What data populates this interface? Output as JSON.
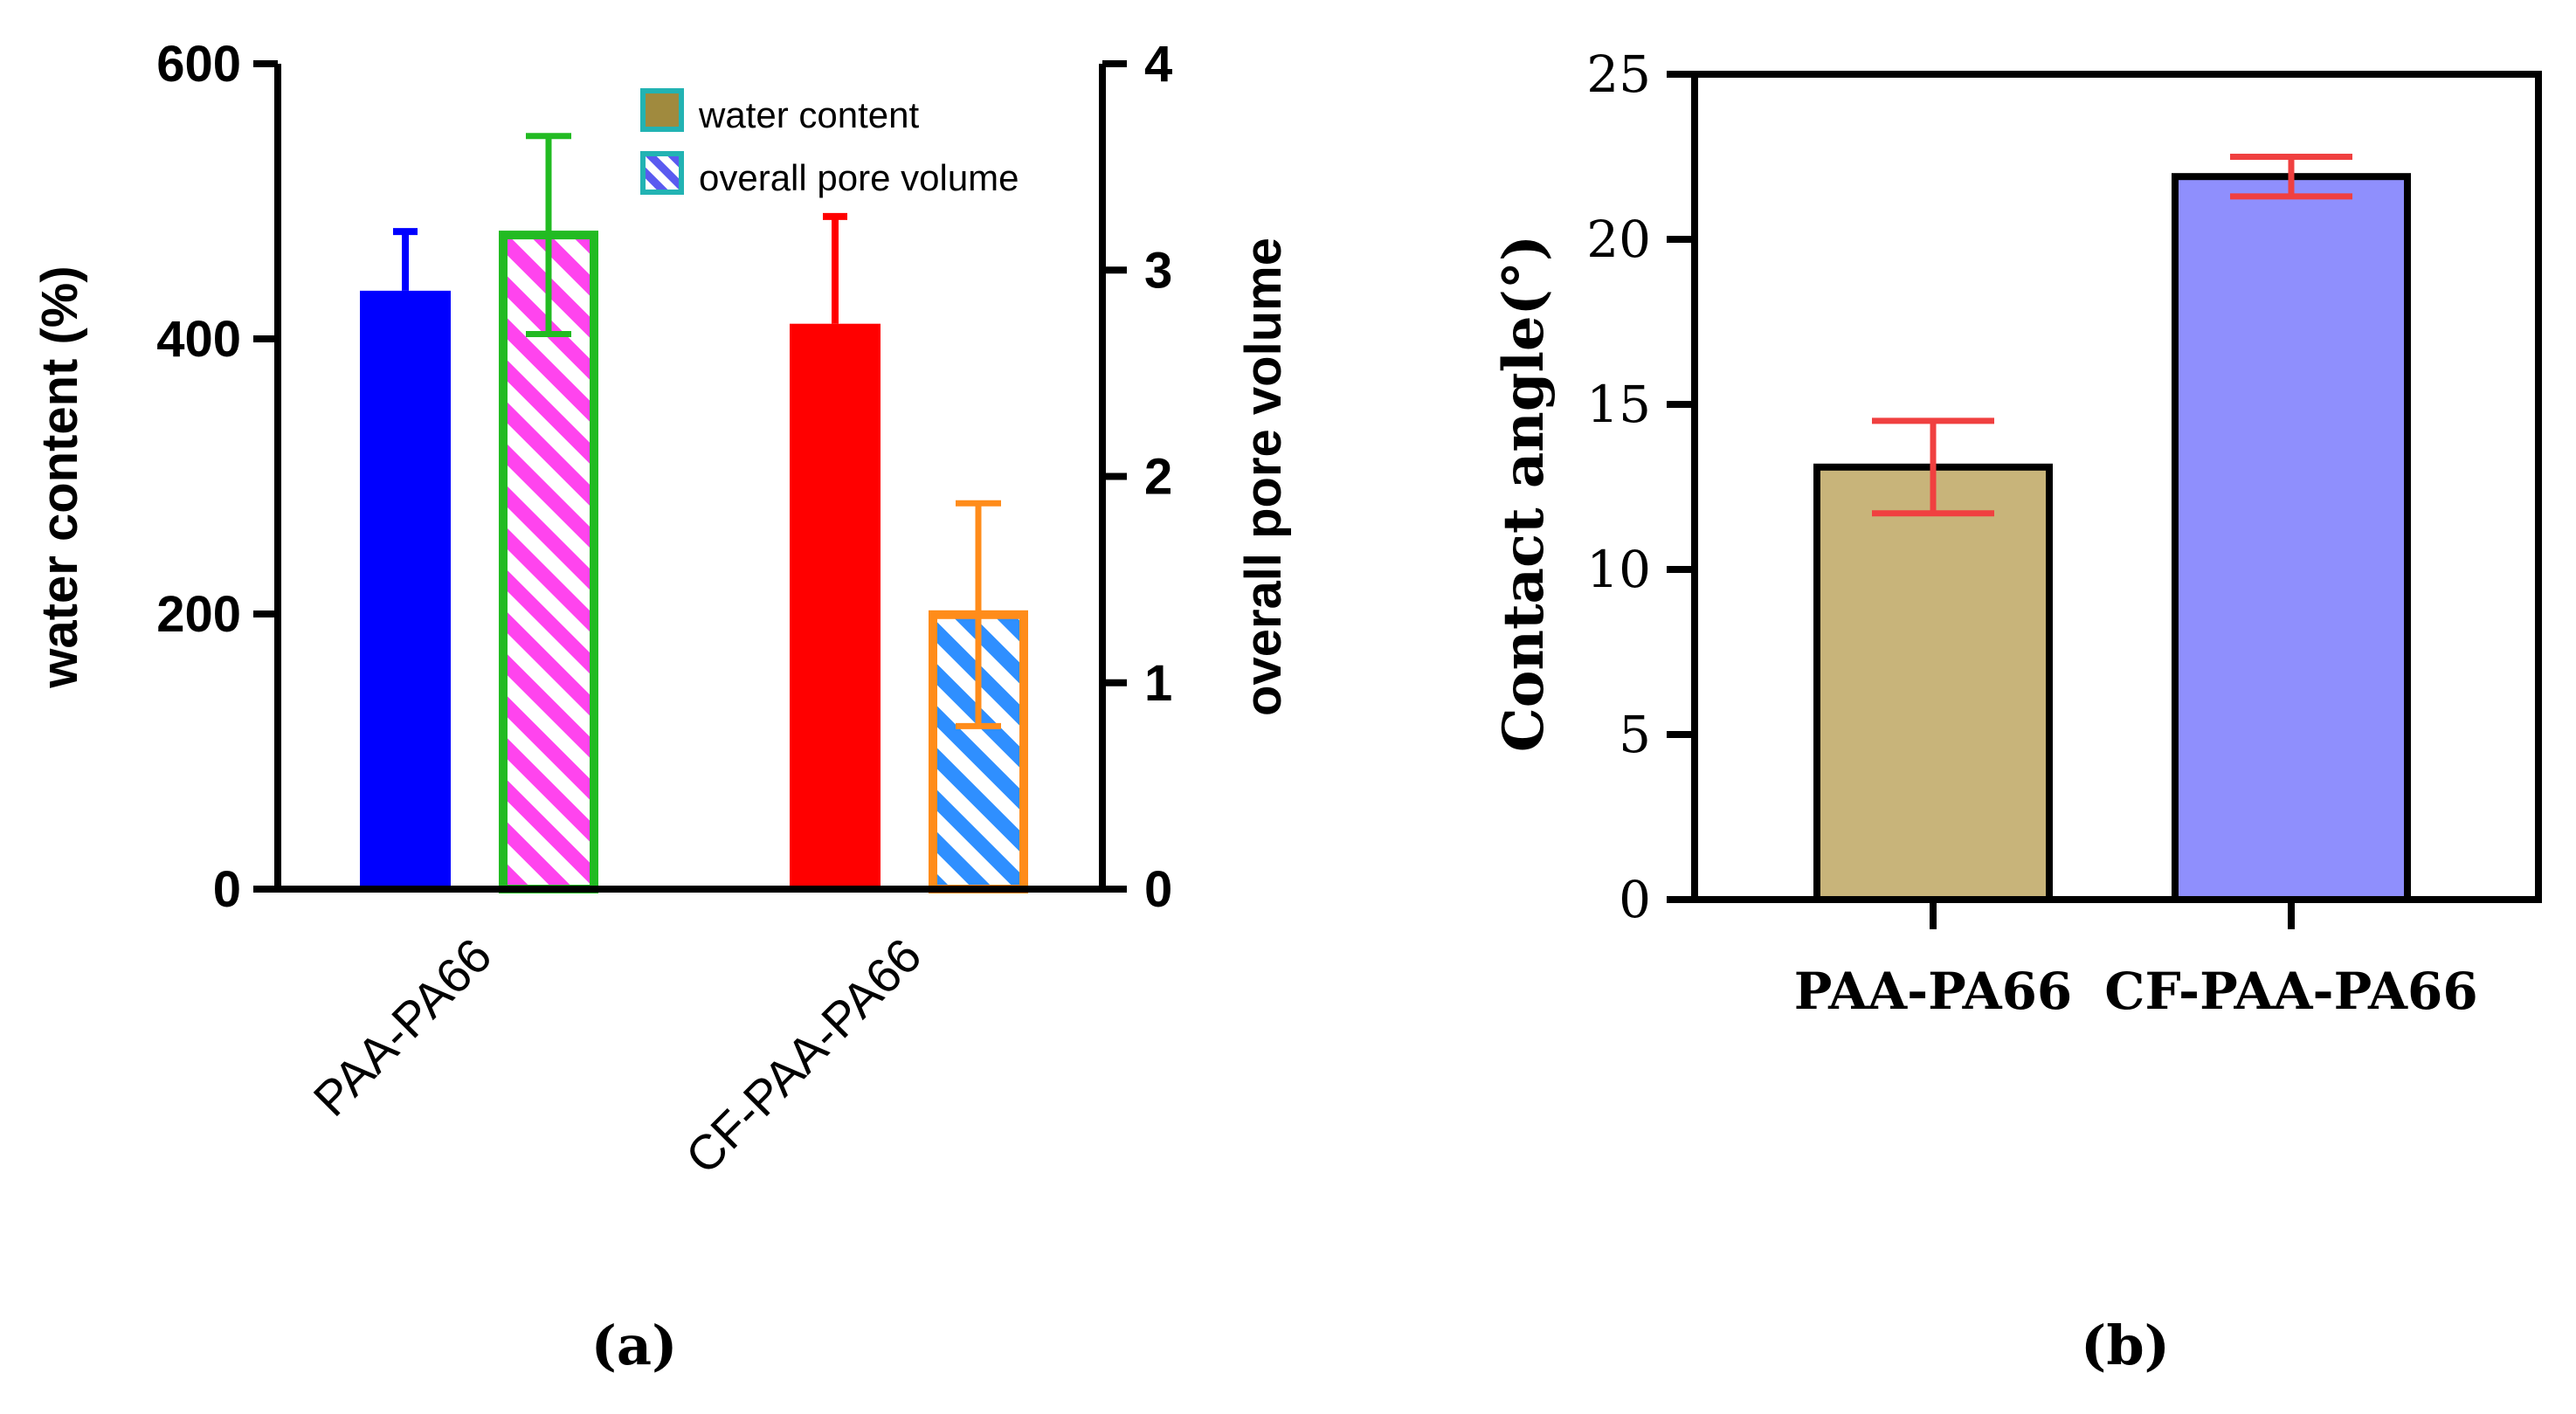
{
  "chart_data": [
    {
      "type": "bar",
      "panel_label": "(a)",
      "categories": [
        "PAA-PA66",
        "CF-PAA-PA66"
      ],
      "series": [
        {
          "name": "water content",
          "axis": "left",
          "values": [
            435,
            411
          ],
          "errors": [
            43,
            78
          ],
          "colors": [
            "#0000ff",
            "#ff0000"
          ],
          "fill": "solid"
        },
        {
          "name": "overall pore volume",
          "axis": "right",
          "values": [
            3.17,
            1.33
          ],
          "errors": [
            0.48,
            0.54
          ],
          "colors": [
            "#22bb22",
            "#ff8c1a"
          ],
          "stripe_colors": [
            "#ff44ee",
            "#2f8fff"
          ],
          "fill": "diagonal-stripes"
        }
      ],
      "ylabel": "water content (%)",
      "ylim": [
        0,
        600
      ],
      "yticks": [
        "0",
        "200",
        "400",
        "600"
      ],
      "y2label": "overall pore volume",
      "y2lim": [
        0,
        4
      ],
      "y2ticks": [
        "0",
        "1",
        "2",
        "3",
        "4"
      ],
      "legend": {
        "placement": "top-right",
        "entries": [
          "water content",
          "overall pore volume"
        ],
        "swatch_colors": [
          "#a08a3e",
          "#5a5af0"
        ],
        "swatch_border": "#22b3b3"
      },
      "grid": false
    },
    {
      "type": "bar",
      "panel_label": "(b)",
      "categories": [
        "PAA-PA66",
        "CF-PAA-PA66"
      ],
      "values": [
        13.1,
        21.9
      ],
      "errors": [
        1.4,
        0.6
      ],
      "colors": [
        "#c8b47a",
        "#8f8ffd"
      ],
      "error_color": "#f04040",
      "ylabel": "Contact angle(°)",
      "ylim": [
        0,
        25
      ],
      "yticks": [
        "0",
        "5",
        "10",
        "15",
        "20",
        "25"
      ],
      "grid": false
    }
  ]
}
